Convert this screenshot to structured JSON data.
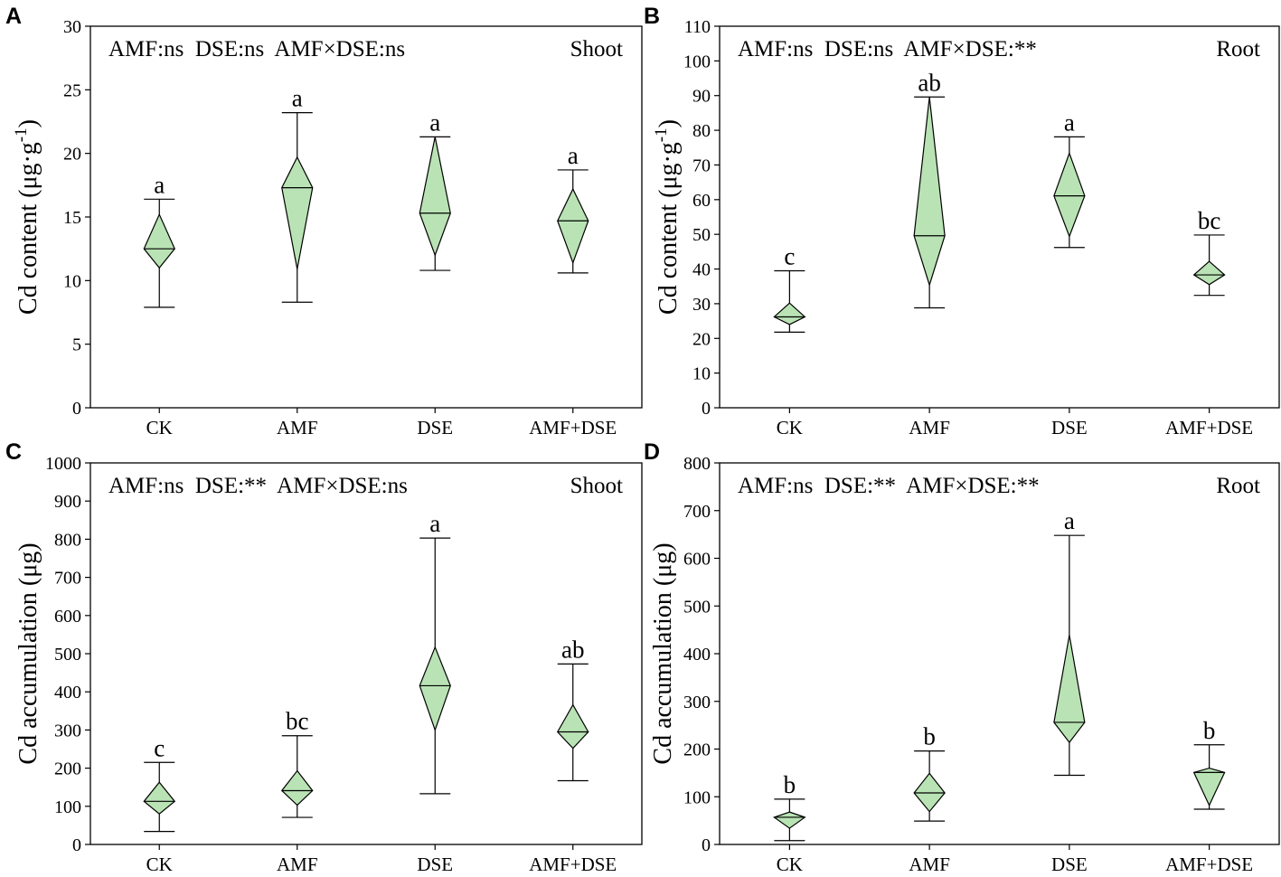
{
  "chart_data": [
    {
      "panel": "A",
      "type": "diamond-box",
      "tissue": "Shoot",
      "stats": "AMF:ns  DSE:ns  AMF×DSE:ns",
      "ylabel": "Cd content (μg·g",
      "ylabel_sup": "-1",
      "ylabel_close": ")",
      "ylim": [
        0,
        30
      ],
      "yticks": [
        0,
        5,
        10,
        15,
        20,
        25,
        30
      ],
      "categories": [
        "CK",
        "AMF",
        "DSE",
        "AMF+DSE"
      ],
      "groups": [
        {
          "name": "CK",
          "min": 7.9,
          "low": 11.0,
          "median": 12.5,
          "high": 15.2,
          "max": 16.4,
          "letter": "a"
        },
        {
          "name": "AMF",
          "min": 8.3,
          "low": 10.9,
          "median": 17.3,
          "high": 19.7,
          "max": 23.2,
          "letter": "a"
        },
        {
          "name": "DSE",
          "min": 10.8,
          "low": 12.0,
          "median": 15.3,
          "high": 21.3,
          "max": 21.3,
          "letter": "a"
        },
        {
          "name": "AMF+DSE",
          "min": 10.6,
          "low": 11.4,
          "median": 14.7,
          "high": 17.2,
          "max": 18.7,
          "letter": "a"
        }
      ]
    },
    {
      "panel": "B",
      "type": "diamond-box",
      "tissue": "Root",
      "stats": "AMF:ns  DSE:ns  AMF×DSE:**",
      "ylabel": "Cd content (μg·g",
      "ylabel_sup": "-1",
      "ylabel_close": ")",
      "ylim": [
        0,
        110
      ],
      "yticks": [
        0,
        10,
        20,
        30,
        40,
        50,
        60,
        70,
        80,
        90,
        100,
        110
      ],
      "categories": [
        "CK",
        "AMF",
        "DSE",
        "AMF+DSE"
      ],
      "groups": [
        {
          "name": "CK",
          "min": 21.8,
          "low": 24.0,
          "median": 26.2,
          "high": 30.2,
          "max": 39.5,
          "letter": "c"
        },
        {
          "name": "AMF",
          "min": 28.8,
          "low": 35.4,
          "median": 49.6,
          "high": 89.6,
          "max": 89.6,
          "letter": "ab"
        },
        {
          "name": "DSE",
          "min": 46.2,
          "low": 49.4,
          "median": 61.1,
          "high": 73.4,
          "max": 78.1,
          "letter": "a"
        },
        {
          "name": "AMF+DSE",
          "min": 32.4,
          "low": 35.5,
          "median": 38.3,
          "high": 42.2,
          "max": 49.8,
          "letter": "bc"
        }
      ]
    },
    {
      "panel": "C",
      "type": "diamond-box",
      "tissue": "Shoot",
      "stats": "AMF:ns  DSE:**  AMF×DSE:ns",
      "ylabel": "Cd accumulation (μg)",
      "ylabel_sup": "",
      "ylabel_close": "",
      "ylim": [
        0,
        1000
      ],
      "yticks": [
        0,
        100,
        200,
        300,
        400,
        500,
        600,
        700,
        800,
        900,
        1000
      ],
      "categories": [
        "CK",
        "AMF",
        "DSE",
        "AMF+DSE"
      ],
      "groups": [
        {
          "name": "CK",
          "min": 34,
          "low": 80,
          "median": 113,
          "high": 163,
          "max": 215,
          "letter": "c"
        },
        {
          "name": "AMF",
          "min": 71,
          "low": 103,
          "median": 141,
          "high": 193,
          "max": 285,
          "letter": "bc"
        },
        {
          "name": "DSE",
          "min": 133,
          "low": 300,
          "median": 416,
          "high": 517,
          "max": 803,
          "letter": "a"
        },
        {
          "name": "AMF+DSE",
          "min": 167,
          "low": 252,
          "median": 295,
          "high": 366,
          "max": 473,
          "letter": "ab"
        }
      ]
    },
    {
      "panel": "D",
      "type": "diamond-box",
      "tissue": "Root",
      "stats": "AMF:ns  DSE:**  AMF×DSE:**",
      "ylabel": "Cd accumulation (μg)",
      "ylabel_sup": "",
      "ylabel_close": "",
      "ylim": [
        0,
        800
      ],
      "yticks": [
        0,
        100,
        200,
        300,
        400,
        500,
        600,
        700,
        800
      ],
      "categories": [
        "CK",
        "AMF",
        "DSE",
        "AMF+DSE"
      ],
      "groups": [
        {
          "name": "CK",
          "min": 8,
          "low": 34,
          "median": 57,
          "high": 68,
          "max": 95,
          "letter": "b"
        },
        {
          "name": "AMF",
          "min": 49,
          "low": 69,
          "median": 108,
          "high": 149,
          "max": 196,
          "letter": "b"
        },
        {
          "name": "DSE",
          "min": 145,
          "low": 214,
          "median": 256,
          "high": 439,
          "max": 648,
          "letter": "a"
        },
        {
          "name": "AMF+DSE",
          "min": 74,
          "low": 82,
          "median": 151,
          "high": 160,
          "max": 209,
          "letter": "b"
        }
      ]
    }
  ]
}
